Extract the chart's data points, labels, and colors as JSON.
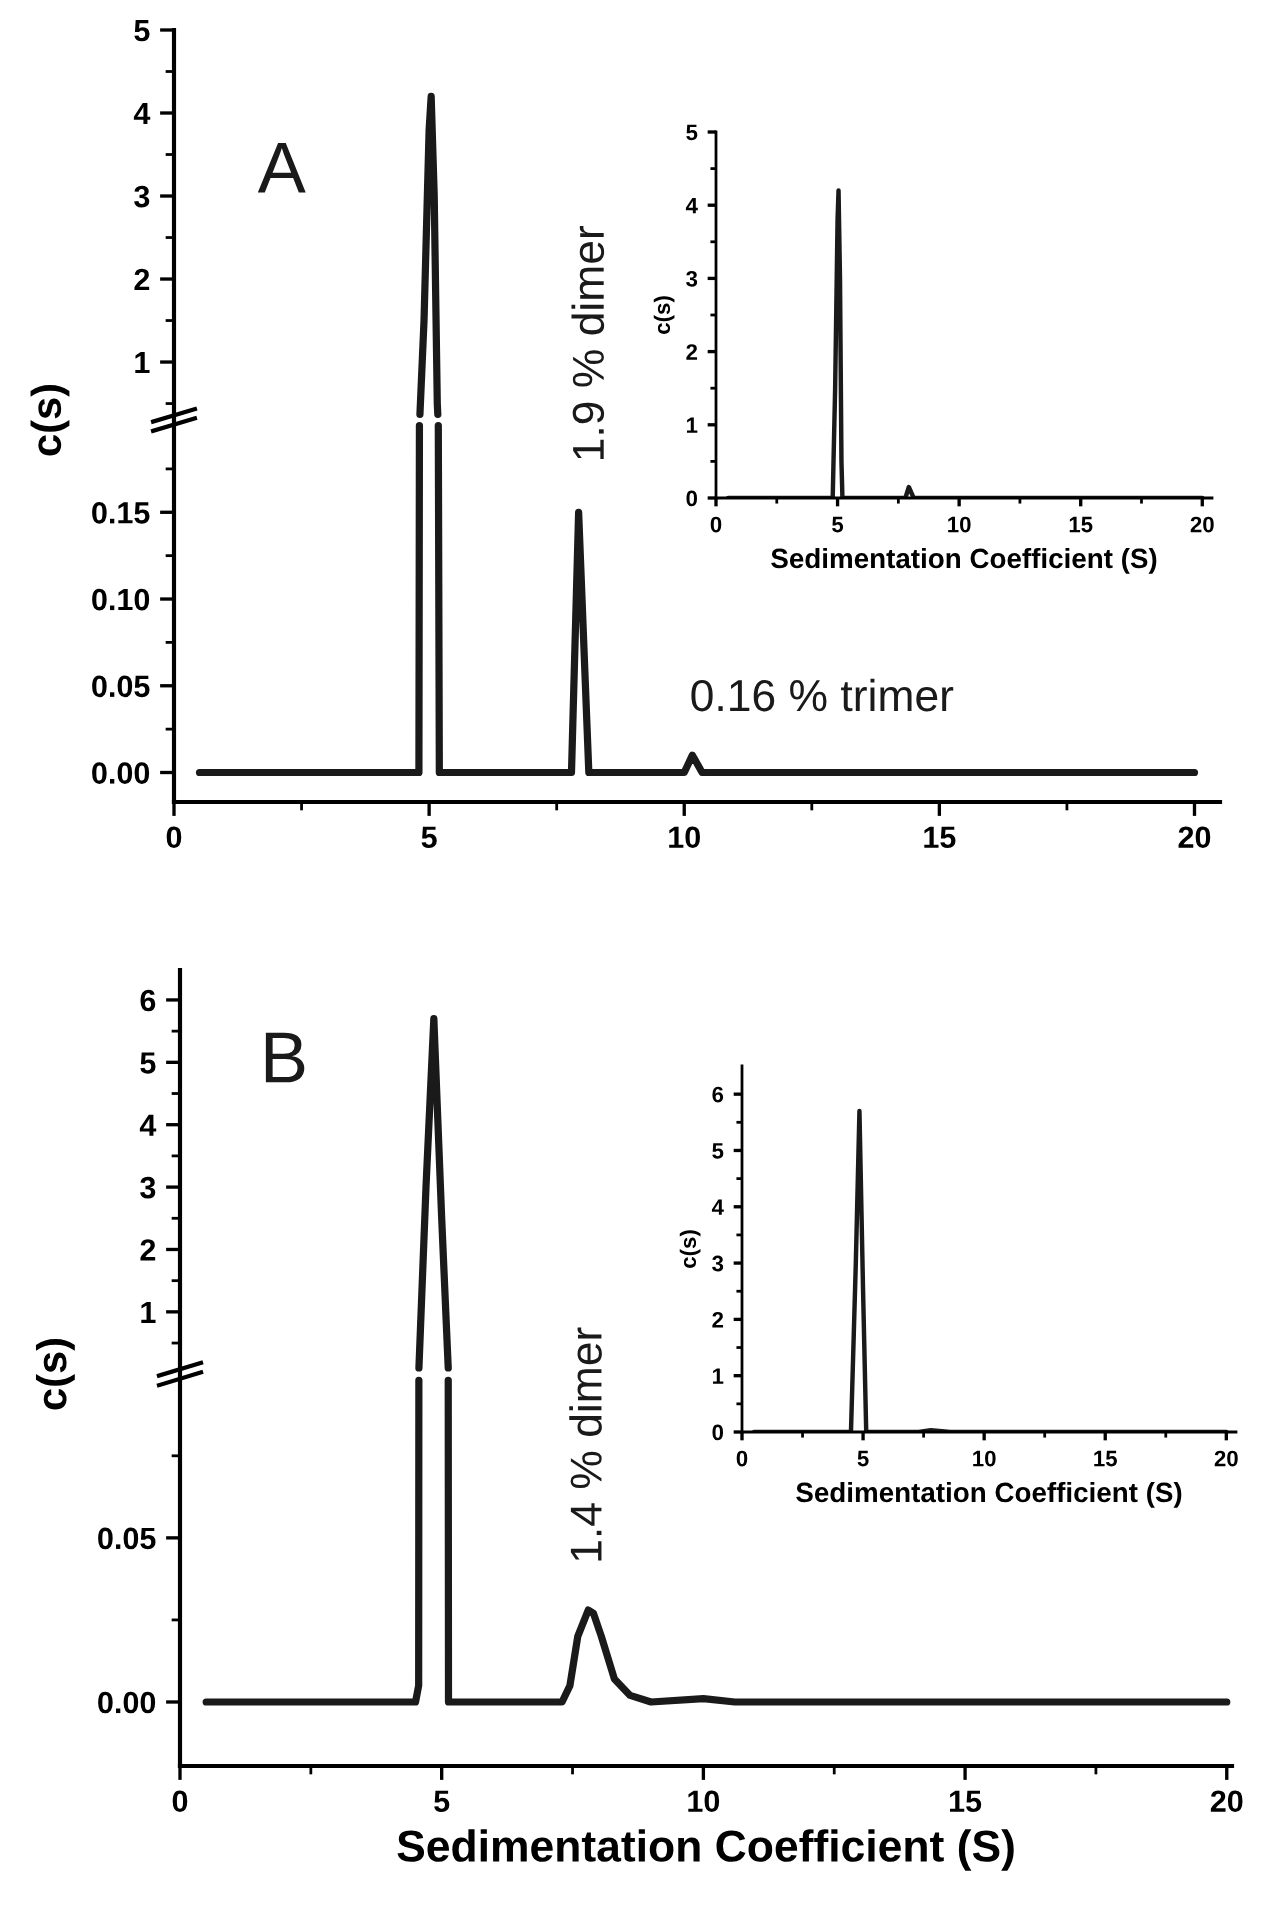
{
  "chart_data": [
    {
      "type": "line",
      "xlim": [
        0,
        20.5
      ],
      "ylim": [
        -0.017,
        0.428
      ],
      "y2lim": [
        -4.3,
        5
      ],
      "xticks": [
        0,
        5,
        10,
        15,
        20
      ],
      "yticks": [
        {
          "value": 0,
          "label": "0.00"
        },
        {
          "value": 0.05,
          "label": "0.05"
        },
        {
          "value": 0.1,
          "label": "0.10"
        },
        {
          "value": 0.15,
          "label": "0.15"
        }
      ],
      "y2ticks": [
        1,
        2,
        3,
        4,
        5
      ],
      "ylabel": "c(s)",
      "annotations": [
        "A",
        "1.9 % dimer",
        "0.16 % trimer"
      ],
      "series": [
        {
          "color": "#1a1a1a",
          "x": [
            0.5,
            4.8,
            4.81,
            5.0,
            5.18,
            5.2,
            7.79,
            7.93,
            8.13,
            10.0,
            10.16,
            10.35,
            20
          ],
          "values": [
            0,
            0,
            0.2,
            null,
            0.2,
            0,
            0,
            0.15,
            0,
            0,
            0.01,
            0,
            0
          ]
        },
        {
          "color": "#1a1a1a",
          "axis": "y2",
          "x": [
            4.82,
            4.9,
            5.0,
            5.04,
            5.1,
            5.16,
            5.17
          ],
          "values": [
            0.37,
            1.5,
            3.8,
            4.2,
            3.0,
            0.5,
            0.37
          ]
        }
      ]
    },
    {
      "type": "line",
      "xlim": [
        0,
        20.4
      ],
      "ylim": [
        0,
        5
      ],
      "xticks": [
        0,
        5,
        10,
        15,
        20
      ],
      "yticks": [
        0,
        1,
        2,
        3,
        4,
        5
      ],
      "xlabel": "Sedimentation Coefficient (S)",
      "ylabel": "c(s)",
      "series": [
        {
          "color": "#1a1a1a",
          "x": [
            0.5,
            4.8,
            4.9,
            5.0,
            5.04,
            5.1,
            5.16,
            5.2,
            7.79,
            7.93,
            8.13,
            20
          ],
          "values": [
            0,
            0,
            1.5,
            3.8,
            4.2,
            3.0,
            0.5,
            0,
            0,
            0.15,
            0,
            0
          ]
        }
      ]
    },
    {
      "type": "line",
      "xlim": [
        0,
        20.1
      ],
      "ylim": [
        -0.0195,
        0.223
      ],
      "y2lim": [
        -6.28,
        6.48
      ],
      "xticks": [
        0,
        5,
        10,
        15,
        20
      ],
      "yticks": [
        {
          "value": 0,
          "label": "0.00"
        },
        {
          "value": 0.05,
          "label": "0.05"
        }
      ],
      "y2ticks": [
        1,
        2,
        3,
        4,
        5,
        6
      ],
      "xlabel": "Sedimentation Coefficient (S)",
      "ylabel": "c(s)",
      "annotations": [
        "B",
        "1.4 % dimer"
      ],
      "series": [
        {
          "color": "#1a1a1a",
          "x": [
            0.5,
            4.5,
            4.56,
            4.564,
            4.8,
            5.125,
            5.13,
            7.3,
            7.45,
            7.6,
            7.8,
            7.9,
            8.05,
            8.3,
            8.6,
            9.0,
            10.0,
            10.6,
            20
          ],
          "values": [
            0,
            0,
            0.005,
            0.098,
            null,
            0.098,
            0,
            0,
            0.005,
            0.02,
            0.028,
            0.027,
            0.02,
            0.007,
            0.002,
            0,
            0.001,
            0,
            0
          ]
        },
        {
          "color": "#1a1a1a",
          "axis": "y2",
          "x": [
            4.565,
            4.7,
            4.85,
            5.0,
            5.125
          ],
          "values": [
            0.1,
            3.0,
            5.7,
            2.5,
            0.1
          ]
        }
      ]
    },
    {
      "type": "line",
      "xlim": [
        0,
        20.4
      ],
      "ylim": [
        0,
        6.5
      ],
      "xticks": [
        0,
        5,
        10,
        15,
        20
      ],
      "yticks": [
        0,
        1,
        2,
        3,
        4,
        5,
        6
      ],
      "xlabel": "Sedimentation Coefficient (S)",
      "ylabel": "c(s)",
      "series": [
        {
          "color": "#1a1a1a",
          "x": [
            0.5,
            4.5,
            4.7,
            4.85,
            5.0,
            5.13,
            7.3,
            7.8,
            8.6,
            20
          ],
          "values": [
            0,
            0,
            3.0,
            5.7,
            2.5,
            0,
            0,
            0.03,
            0,
            0
          ]
        }
      ]
    }
  ]
}
